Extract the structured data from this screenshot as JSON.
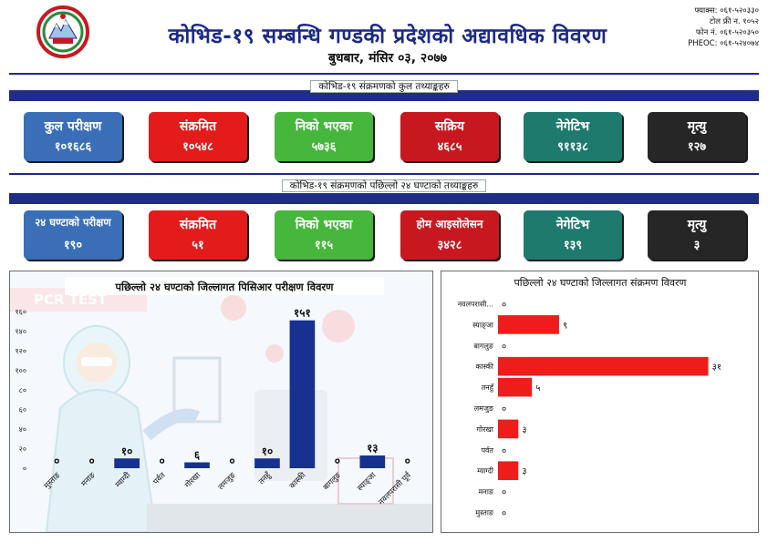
{
  "header": {
    "title": "कोभिड-१९ सम्बन्धि गण्डकी प्रदेशको अद्यावधिक विवरण",
    "date": "बुधबार, मंसिर ०३, २०७७",
    "contact": {
      "fax": "फ्याक्स: ०६१-५२०३३०",
      "tollfree": "टोल फ्री न. १०५२",
      "phone": "फोन नं. ०६१-५२०३५०",
      "pheoc": "PHEOC: ०६१-५२४०७४"
    }
  },
  "total_section": {
    "label": "कोभिड-१९ संक्रमणको कुल तथ्याङ्कहरु",
    "cards": [
      {
        "label": "कुल परीक्षण",
        "value": "१०१६८६"
      },
      {
        "label": "संक्रमित",
        "value": "१०५४८"
      },
      {
        "label": "निको भएका",
        "value": "५७३६"
      },
      {
        "label": "सक्रिय",
        "value": "४६८५"
      },
      {
        "label": "नेगेटिभ",
        "value": "९११३८"
      },
      {
        "label": "मृत्यु",
        "value": "१२७"
      }
    ]
  },
  "daily_section": {
    "label": "कोभिड-१९ संक्रमणको पछिल्लो २४ घण्टाको तथ्याङ्कहरु",
    "cards": [
      {
        "label": "२४ घण्टाको परीक्षण",
        "value": "१९०"
      },
      {
        "label": "संक्रमित",
        "value": "५१"
      },
      {
        "label": "निको भएका",
        "value": "११५"
      },
      {
        "label": "होम आइसोलेसन",
        "value": "३४२८"
      },
      {
        "label": "नेगेटिभ",
        "value": "१३९"
      },
      {
        "label": "मृत्यु",
        "value": "३"
      }
    ]
  },
  "pcr_watermark": "PCR TEST",
  "colors": {
    "navy": "#1b2a8a",
    "bar_blue": "#16318f",
    "bar_red": "#ef1c1c"
  },
  "chart_data": [
    {
      "type": "bar",
      "orientation": "vertical",
      "title": "पछिल्लो २४ घण्टाको जिल्लागत पिसिआर परीक्षण विवरण",
      "categories": [
        "मुस्ताङ",
        "मनाङ",
        "म्याग्दी",
        "पर्वत",
        "गोरखा",
        "लमजुङ",
        "तनहुँ",
        "कास्की",
        "बागलुङ",
        "स्याङ्जा",
        "नवलपरासी पूर्व"
      ],
      "values": [
        0,
        0,
        10,
        0,
        6,
        0,
        10,
        151,
        0,
        13,
        0
      ],
      "value_labels": [
        "०",
        "०",
        "१०",
        "०",
        "६",
        "०",
        "१०",
        "१५१",
        "०",
        "१३",
        "०"
      ],
      "ylim": [
        0,
        160
      ],
      "yticks": [
        0,
        20,
        40,
        60,
        80,
        100,
        120,
        140,
        160
      ],
      "ytick_labels": [
        "०",
        "२०",
        "४०",
        "६०",
        "८०",
        "१००",
        "१२०",
        "१४०",
        "१६०"
      ]
    },
    {
      "type": "bar",
      "orientation": "horizontal",
      "title": "पछिल्लो २४ घण्टाको जिल्लागत संक्रमण विवरण",
      "categories": [
        "नवलपरासी...",
        "स्याङ्जा",
        "बागलुङ",
        "कास्की",
        "तनहुँ",
        "लमजुङ",
        "गोरखा",
        "पर्वत",
        "म्याग्दी",
        "मनाङ",
        "मुस्ताङ"
      ],
      "values": [
        0,
        9,
        0,
        31,
        5,
        0,
        3,
        0,
        3,
        0,
        0
      ],
      "value_labels": [
        "०",
        "९",
        "०",
        "३१",
        "५",
        "०",
        "३",
        "०",
        "३",
        "०",
        "०"
      ],
      "xlim": [
        0,
        32
      ]
    }
  ]
}
